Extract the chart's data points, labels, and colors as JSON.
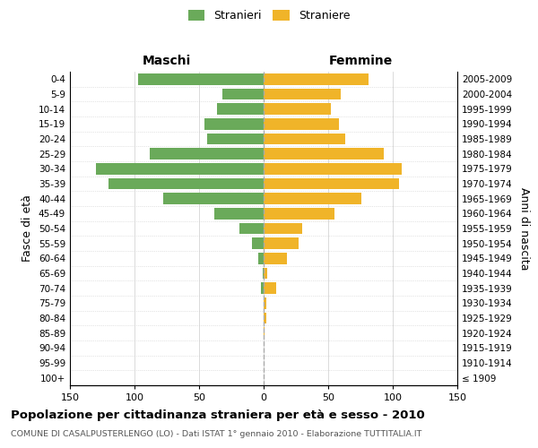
{
  "age_groups": [
    "100+",
    "95-99",
    "90-94",
    "85-89",
    "80-84",
    "75-79",
    "70-74",
    "65-69",
    "60-64",
    "55-59",
    "50-54",
    "45-49",
    "40-44",
    "35-39",
    "30-34",
    "25-29",
    "20-24",
    "15-19",
    "10-14",
    "5-9",
    "0-4"
  ],
  "birth_years": [
    "≤ 1909",
    "1910-1914",
    "1915-1919",
    "1920-1924",
    "1925-1929",
    "1930-1934",
    "1935-1939",
    "1940-1944",
    "1945-1949",
    "1950-1954",
    "1955-1959",
    "1960-1964",
    "1965-1969",
    "1970-1974",
    "1975-1979",
    "1980-1984",
    "1985-1989",
    "1990-1994",
    "1995-1999",
    "2000-2004",
    "2005-2009"
  ],
  "maschi": [
    0,
    0,
    0,
    0,
    0,
    0,
    2,
    1,
    4,
    9,
    19,
    38,
    78,
    120,
    130,
    88,
    44,
    46,
    36,
    32,
    97
  ],
  "femmine": [
    0,
    0,
    0,
    1,
    2,
    2,
    10,
    3,
    18,
    27,
    30,
    55,
    76,
    105,
    107,
    93,
    63,
    58,
    52,
    60,
    81
  ],
  "color_maschi": "#6aaa5a",
  "color_femmine": "#f0b429",
  "xlim": 150,
  "title": "Popolazione per cittadinanza straniera per età e sesso - 2010",
  "subtitle": "COMUNE DI CASALPUSTERLENGO (LO) - Dati ISTAT 1° gennaio 2010 - Elaborazione TUTTITALIA.IT",
  "ylabel_left": "Fasce di età",
  "ylabel_right": "Anni di nascita",
  "legend_maschi": "Stranieri",
  "legend_femmine": "Straniere",
  "header_maschi": "Maschi",
  "header_femmine": "Femmine",
  "bg_color": "#ffffff",
  "grid_color": "#cccccc"
}
